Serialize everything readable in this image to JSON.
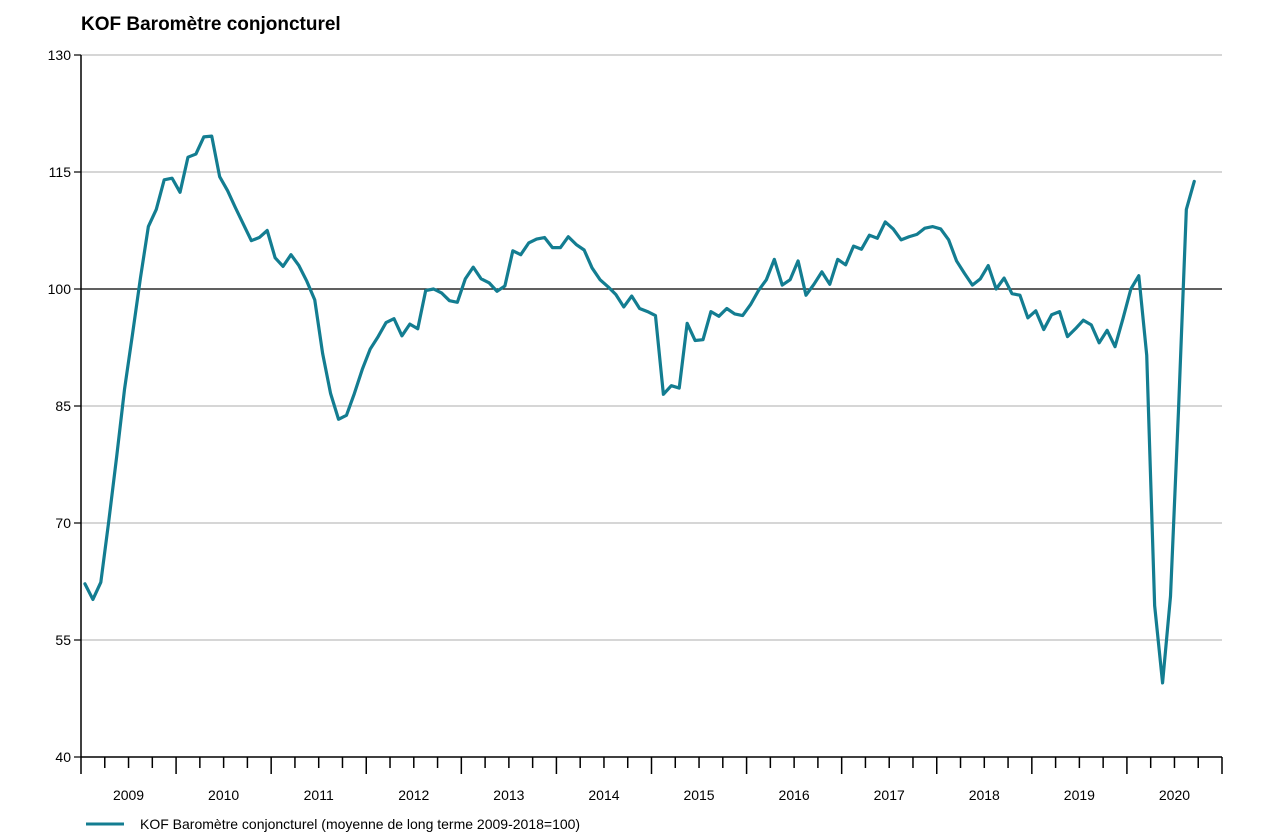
{
  "chart_data": {
    "type": "line",
    "title": "KOF Baromètre conjoncturel",
    "xlabel": "",
    "ylabel": "",
    "ylim": [
      40,
      130
    ],
    "yticks": [
      40,
      55,
      70,
      85,
      100,
      115,
      130
    ],
    "reference_line": 100,
    "grid": true,
    "legend_position": "bottom-left",
    "color": "#137d91",
    "year_labels": [
      "2009",
      "2010",
      "2011",
      "2012",
      "2013",
      "2014",
      "2015",
      "2016",
      "2017",
      "2018",
      "2019",
      "2020"
    ],
    "series": [
      {
        "name": "KOF Baromètre conjoncturel (moyenne de long terme 2009-2018=100)",
        "start": "2009-01",
        "values": [
          62.2,
          60.2,
          62.4,
          70.2,
          78.5,
          87.2,
          94.2,
          101.4,
          108.0,
          110.2,
          114.0,
          114.2,
          112.4,
          116.9,
          117.3,
          119.5,
          119.6,
          114.4,
          112.6,
          110.4,
          108.3,
          106.2,
          106.6,
          107.5,
          104.0,
          102.9,
          104.4,
          103.0,
          101.0,
          98.6,
          91.7,
          86.6,
          83.3,
          83.8,
          86.6,
          89.7,
          92.3,
          93.9,
          95.7,
          96.2,
          94.0,
          95.5,
          94.9,
          99.8,
          100.0,
          99.5,
          98.5,
          98.3,
          101.3,
          102.8,
          101.3,
          100.8,
          99.7,
          100.4,
          104.9,
          104.4,
          105.9,
          106.4,
          106.6,
          105.3,
          105.3,
          106.7,
          105.7,
          105.0,
          102.7,
          101.2,
          100.3,
          99.3,
          97.7,
          99.1,
          97.5,
          97.1,
          96.6,
          86.5,
          87.6,
          87.3,
          95.6,
          93.4,
          93.5,
          97.1,
          96.5,
          97.5,
          96.8,
          96.6,
          98.0,
          99.8,
          101.2,
          103.8,
          100.5,
          101.2,
          103.6,
          99.2,
          100.6,
          102.2,
          100.6,
          103.8,
          103.1,
          105.5,
          105.1,
          106.9,
          106.5,
          108.6,
          107.7,
          106.3,
          106.7,
          107.0,
          107.8,
          108.0,
          107.7,
          106.3,
          103.6,
          102.0,
          100.5,
          101.3,
          103.0,
          100.0,
          101.4,
          99.4,
          99.2,
          96.3,
          97.2,
          94.8,
          96.7,
          97.1,
          93.9,
          94.9,
          96.0,
          95.4,
          93.1,
          94.7,
          92.6,
          96.2,
          100.0,
          101.7,
          91.5,
          59.4,
          49.5,
          60.6,
          84.2,
          110.2,
          113.8
        ]
      }
    ]
  }
}
